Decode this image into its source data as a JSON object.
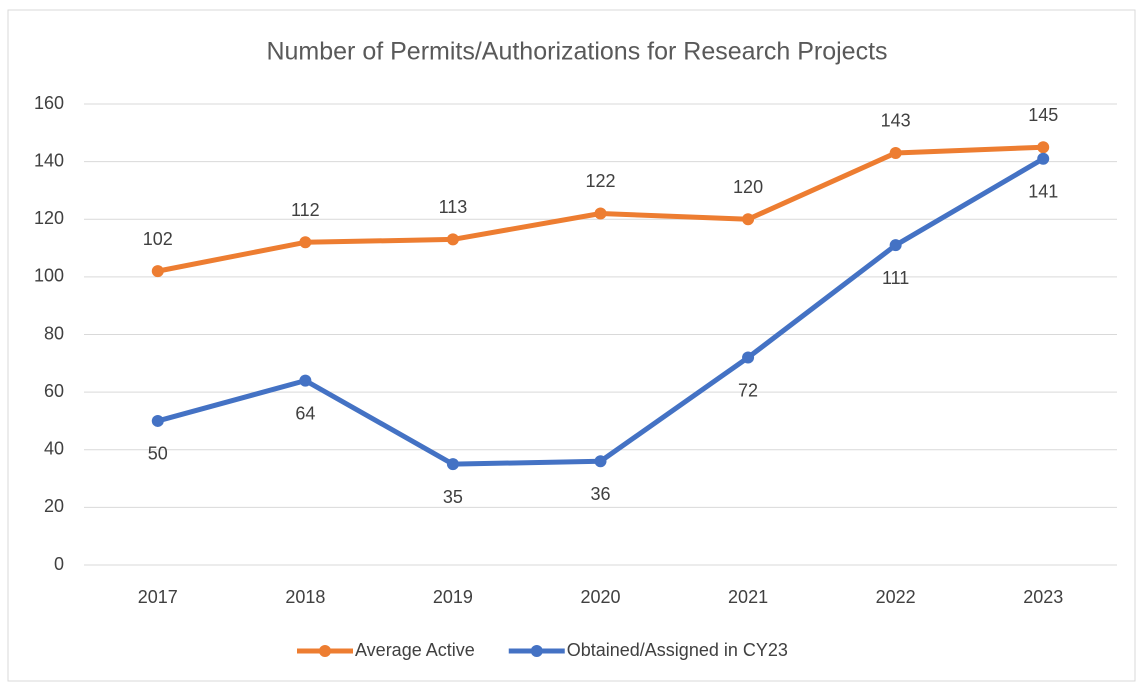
{
  "chart_data": {
    "type": "line",
    "title": "Number of Permits/Authorizations for Research Projects",
    "categories": [
      "2017",
      "2018",
      "2019",
      "2020",
      "2021",
      "2022",
      "2023"
    ],
    "series": [
      {
        "name": "Average Active",
        "color": "#ed7d31",
        "values": [
          102,
          112,
          113,
          122,
          120,
          143,
          145
        ]
      },
      {
        "name": "Obtained/Assigned in CY23",
        "color": "#4472c4",
        "values": [
          50,
          64,
          35,
          36,
          72,
          111,
          141
        ]
      }
    ],
    "ylim": [
      0,
      160
    ],
    "yticks": [
      0,
      20,
      40,
      60,
      80,
      100,
      120,
      140,
      160
    ],
    "grid": true,
    "legend": "bottom"
  }
}
